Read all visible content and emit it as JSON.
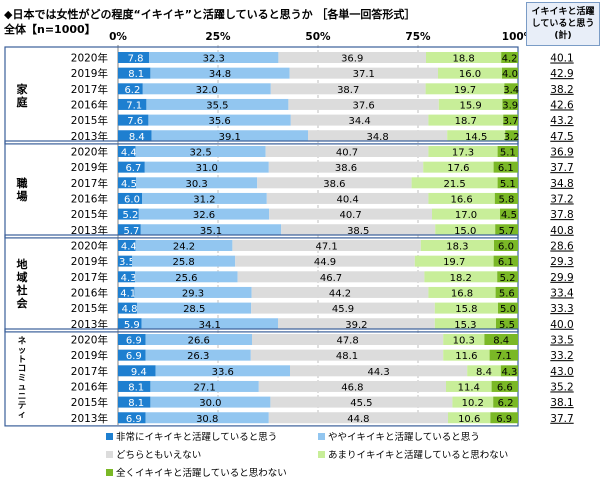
{
  "title": "◆日本では女性がどの程度“イキイキ”と活躍していると思うか ［各単一回答形式］",
  "subtitle": "全体【n=1000】",
  "right_header": "イキイキと活躍していると思う(計)",
  "colors": {
    "s1": "#1e7fd0",
    "s2": "#92c6f0",
    "s3": "#dcdcdc",
    "s4": "#c8ee99",
    "s5": "#7ab826",
    "group_border": "#3a5f99"
  },
  "chart_data": {
    "type": "bar",
    "stacked": true,
    "orientation": "horizontal",
    "xlim": [
      0,
      100
    ],
    "x_ticks": [
      "0%",
      "25%",
      "50%",
      "75%",
      "100%"
    ],
    "series": [
      {
        "name": "非常にイキイキと活躍していると思う"
      },
      {
        "name": "ややイキイキと活躍していると思う"
      },
      {
        "name": "どちらともいえない"
      },
      {
        "name": "あまりイキイキと活躍していると思わない"
      },
      {
        "name": "全くイキイキと活躍していると思わない"
      }
    ],
    "groups": [
      {
        "name": "家庭",
        "rows": [
          {
            "year": "2020年",
            "values": [
              7.8,
              32.3,
              36.9,
              18.8,
              4.2
            ],
            "total": "40.1"
          },
          {
            "year": "2019年",
            "values": [
              8.1,
              34.8,
              37.1,
              16.0,
              4.0
            ],
            "total": "42.9"
          },
          {
            "year": "2017年",
            "values": [
              6.2,
              32.0,
              38.7,
              19.7,
              3.4
            ],
            "total": "38.2"
          },
          {
            "year": "2016年",
            "values": [
              7.1,
              35.5,
              37.6,
              15.9,
              3.9
            ],
            "total": "42.6"
          },
          {
            "year": "2015年",
            "values": [
              7.6,
              35.6,
              34.4,
              18.7,
              3.7
            ],
            "total": "43.2"
          },
          {
            "year": "2013年",
            "values": [
              8.4,
              39.1,
              34.8,
              14.5,
              3.2
            ],
            "total": "47.5"
          }
        ]
      },
      {
        "name": "職場",
        "rows": [
          {
            "year": "2020年",
            "values": [
              4.4,
              32.5,
              40.7,
              17.3,
              5.1
            ],
            "total": "36.9"
          },
          {
            "year": "2019年",
            "values": [
              6.7,
              31.0,
              38.6,
              17.6,
              6.1
            ],
            "total": "37.7"
          },
          {
            "year": "2017年",
            "values": [
              4.5,
              30.3,
              38.6,
              21.5,
              5.1
            ],
            "total": "34.8"
          },
          {
            "year": "2016年",
            "values": [
              6.0,
              31.2,
              40.4,
              16.6,
              5.8
            ],
            "total": "37.2"
          },
          {
            "year": "2015年",
            "values": [
              5.2,
              32.6,
              40.7,
              17.0,
              4.5
            ],
            "total": "37.8"
          },
          {
            "year": "2013年",
            "values": [
              5.7,
              35.1,
              38.5,
              15.0,
              5.7
            ],
            "total": "40.8"
          }
        ]
      },
      {
        "name": "地域社会",
        "rows": [
          {
            "year": "2020年",
            "values": [
              4.4,
              24.2,
              47.1,
              18.3,
              6.0
            ],
            "total": "28.6"
          },
          {
            "year": "2019年",
            "values": [
              3.5,
              25.8,
              44.9,
              19.7,
              6.1
            ],
            "total": "29.3"
          },
          {
            "year": "2017年",
            "values": [
              4.3,
              25.6,
              46.7,
              18.2,
              5.2
            ],
            "total": "29.9"
          },
          {
            "year": "2016年",
            "values": [
              4.1,
              29.3,
              44.2,
              16.8,
              5.6
            ],
            "total": "33.4"
          },
          {
            "year": "2015年",
            "values": [
              4.8,
              28.5,
              45.9,
              15.8,
              5.0
            ],
            "total": "33.3"
          },
          {
            "year": "2013年",
            "values": [
              5.9,
              34.1,
              39.2,
              15.3,
              5.5
            ],
            "total": "40.0"
          }
        ]
      },
      {
        "name": "ネットコミュニティ",
        "rows": [
          {
            "year": "2020年",
            "values": [
              6.9,
              26.6,
              47.8,
              10.3,
              8.4
            ],
            "total": "33.5"
          },
          {
            "year": "2019年",
            "values": [
              6.9,
              26.3,
              48.1,
              11.6,
              7.1
            ],
            "total": "33.2"
          },
          {
            "year": "2017年",
            "values": [
              9.4,
              33.6,
              44.3,
              8.4,
              4.3
            ],
            "total": "43.0"
          },
          {
            "year": "2016年",
            "values": [
              8.1,
              27.1,
              46.8,
              11.4,
              6.6
            ],
            "total": "35.2"
          },
          {
            "year": "2015年",
            "values": [
              8.1,
              30.0,
              45.5,
              10.2,
              6.2
            ],
            "total": "38.1"
          },
          {
            "year": "2013年",
            "values": [
              6.9,
              30.8,
              44.8,
              10.6,
              6.9
            ],
            "total": "37.7"
          }
        ]
      }
    ]
  }
}
